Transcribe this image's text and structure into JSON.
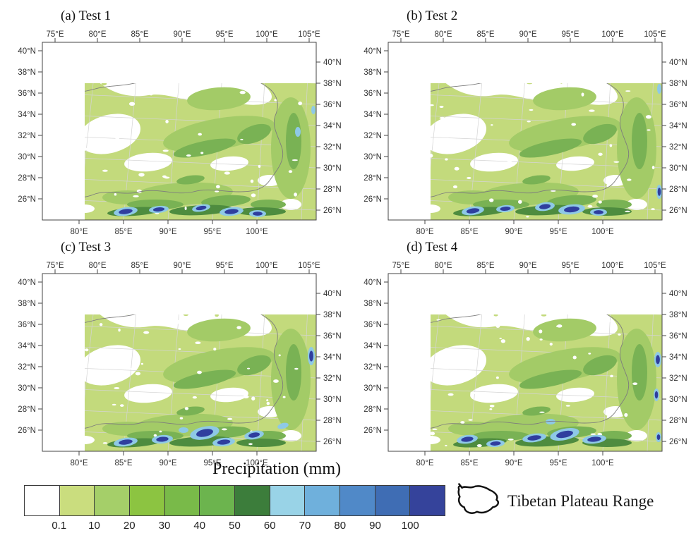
{
  "figure": {
    "panels": [
      {
        "id": "a",
        "title": "(a) Test 1"
      },
      {
        "id": "b",
        "title": "(b) Test 2"
      },
      {
        "id": "c",
        "title": "(c) Test 3"
      },
      {
        "id": "d",
        "title": "(d) Test 4"
      }
    ],
    "axis": {
      "top_ticks": [
        "75°E",
        "80°E",
        "85°E",
        "90°E",
        "95°E",
        "100°E",
        "105°E"
      ],
      "bottom_ticks": [
        "80°E",
        "85°E",
        "90°E",
        "95°E",
        "100°E"
      ],
      "lat_ticks": [
        "40°N",
        "38°N",
        "36°N",
        "34°N",
        "32°N",
        "30°N",
        "28°N",
        "26°N"
      ]
    },
    "colorbar": {
      "title": "Precipitation (mm)",
      "labels": [
        "0.1",
        "10",
        "20",
        "30",
        "40",
        "50",
        "60",
        "70",
        "80",
        "90",
        "100"
      ],
      "colors": [
        "#ffffff",
        "#cadd7e",
        "#a5cf69",
        "#8cc441",
        "#79ba49",
        "#6cb44e",
        "#3c7d3b",
        "#99d3e7",
        "#6fb0dc",
        "#5089c8",
        "#3f6db4",
        "#35439b"
      ]
    },
    "legend": {
      "label": "Tibetan Plateau Range"
    },
    "map_colors": {
      "base": "#c3da7c",
      "mid": "#a3cb67",
      "dark": "#79b254",
      "ridge": "#4e8c3f",
      "cyan": "#8ec9e6",
      "navy": "#2f3e9e",
      "boundary": "#7d7d7d",
      "grid": "#d4d4d4",
      "frame": "#444444"
    }
  },
  "chart_data": {
    "type": "heatmap",
    "title": "Precipitation (mm)",
    "panels": [
      "(a) Test 1",
      "(b) Test 2",
      "(c) Test 3",
      "(d) Test 4"
    ],
    "x_axis": {
      "ticks_top": [
        "75°E",
        "80°E",
        "85°E",
        "90°E",
        "95°E",
        "100°E",
        "105°E"
      ],
      "ticks_bottom": [
        "80°E",
        "85°E",
        "90°E",
        "95°E",
        "100°E"
      ]
    },
    "y_axis": {
      "ticks": [
        "40°N",
        "38°N",
        "36°N",
        "34°N",
        "32°N",
        "30°N",
        "28°N",
        "26°N"
      ]
    },
    "colorbar_levels": [
      0.1,
      10,
      20,
      30,
      40,
      50,
      60,
      70,
      80,
      90,
      100
    ],
    "colorbar_colors": [
      "#ffffff",
      "#cadd7e",
      "#a5cf69",
      "#8cc441",
      "#79ba49",
      "#6cb44e",
      "#3c7d3b",
      "#99d3e7",
      "#6fb0dc",
      "#5089c8",
      "#3f6db4",
      "#35439b"
    ],
    "legend": "Tibetan Plateau Range"
  }
}
